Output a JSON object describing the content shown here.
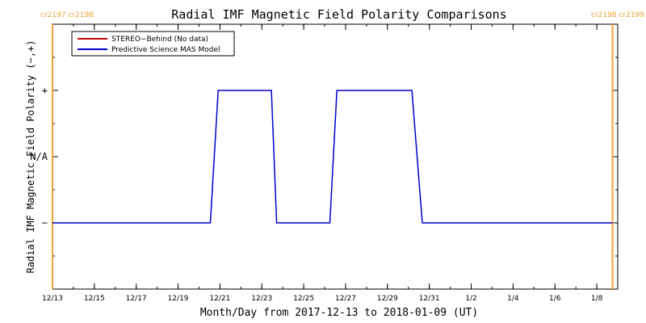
{
  "chart_data": {
    "type": "line",
    "title": "Radial IMF Magnetic Field Polarity Comparisons",
    "xlabel": "Month/Day from 2017-12-13 to 2018-01-09 (UT)",
    "ylabel": "Radial IMF Magnetic Field Polarity (−,+)",
    "x_range": [
      "2017-12-13",
      "2018-01-09"
    ],
    "x_ticks": [
      {
        "date": "2017-12-13",
        "label": "12/13"
      },
      {
        "date": "2017-12-15",
        "label": "12/15"
      },
      {
        "date": "2017-12-17",
        "label": "12/17"
      },
      {
        "date": "2017-12-19",
        "label": "12/19"
      },
      {
        "date": "2017-12-21",
        "label": "12/21"
      },
      {
        "date": "2017-12-23",
        "label": "12/23"
      },
      {
        "date": "2017-12-25",
        "label": "12/25"
      },
      {
        "date": "2017-12-27",
        "label": "12/27"
      },
      {
        "date": "2017-12-29",
        "label": "12/29"
      },
      {
        "date": "2017-12-31",
        "label": "12/31"
      },
      {
        "date": "2018-01-02",
        "label": "1/2"
      },
      {
        "date": "2018-01-04",
        "label": "1/4"
      },
      {
        "date": "2018-01-06",
        "label": "1/6"
      },
      {
        "date": "2018-01-08",
        "label": "1/8"
      }
    ],
    "y_levels": [
      {
        "value": 1,
        "label": "+"
      },
      {
        "value": 0,
        "label": "N/A"
      },
      {
        "value": -1,
        "label": "−"
      }
    ],
    "ylim": [
      -2,
      2
    ],
    "carrington_markers": [
      {
        "date": "2017-12-13",
        "label": "cr2197 cr2198",
        "color": "#f0a030",
        "side": "left"
      },
      {
        "date": "2018-01-08T18:00",
        "label": "cr2198 cr2199",
        "color": "#f0a030",
        "side": "right"
      }
    ],
    "legend": {
      "position": "top-left",
      "entries": [
        {
          "label": "STEREO−Behind (No data)",
          "color": "#c00000"
        },
        {
          "label": "Predictive Science MAS Model",
          "color": "#0000cc"
        }
      ]
    },
    "series": [
      {
        "name": "Predictive Science MAS Model",
        "color": "#0000cc",
        "points": [
          [
            "2017-12-13T00:00",
            -1
          ],
          [
            "2017-12-20T13:00",
            -1
          ],
          [
            "2017-12-20T22:00",
            1
          ],
          [
            "2017-12-23T11:00",
            1
          ],
          [
            "2017-12-23T17:00",
            -1
          ],
          [
            "2017-12-26T06:00",
            -1
          ],
          [
            "2017-12-26T14:00",
            1
          ],
          [
            "2017-12-30T04:00",
            1
          ],
          [
            "2017-12-30T16:00",
            -1
          ],
          [
            "2018-01-08T18:00",
            -1
          ]
        ]
      },
      {
        "name": "STEREO−Behind (No data)",
        "color": "#c00000",
        "points": []
      }
    ],
    "grid": false
  }
}
